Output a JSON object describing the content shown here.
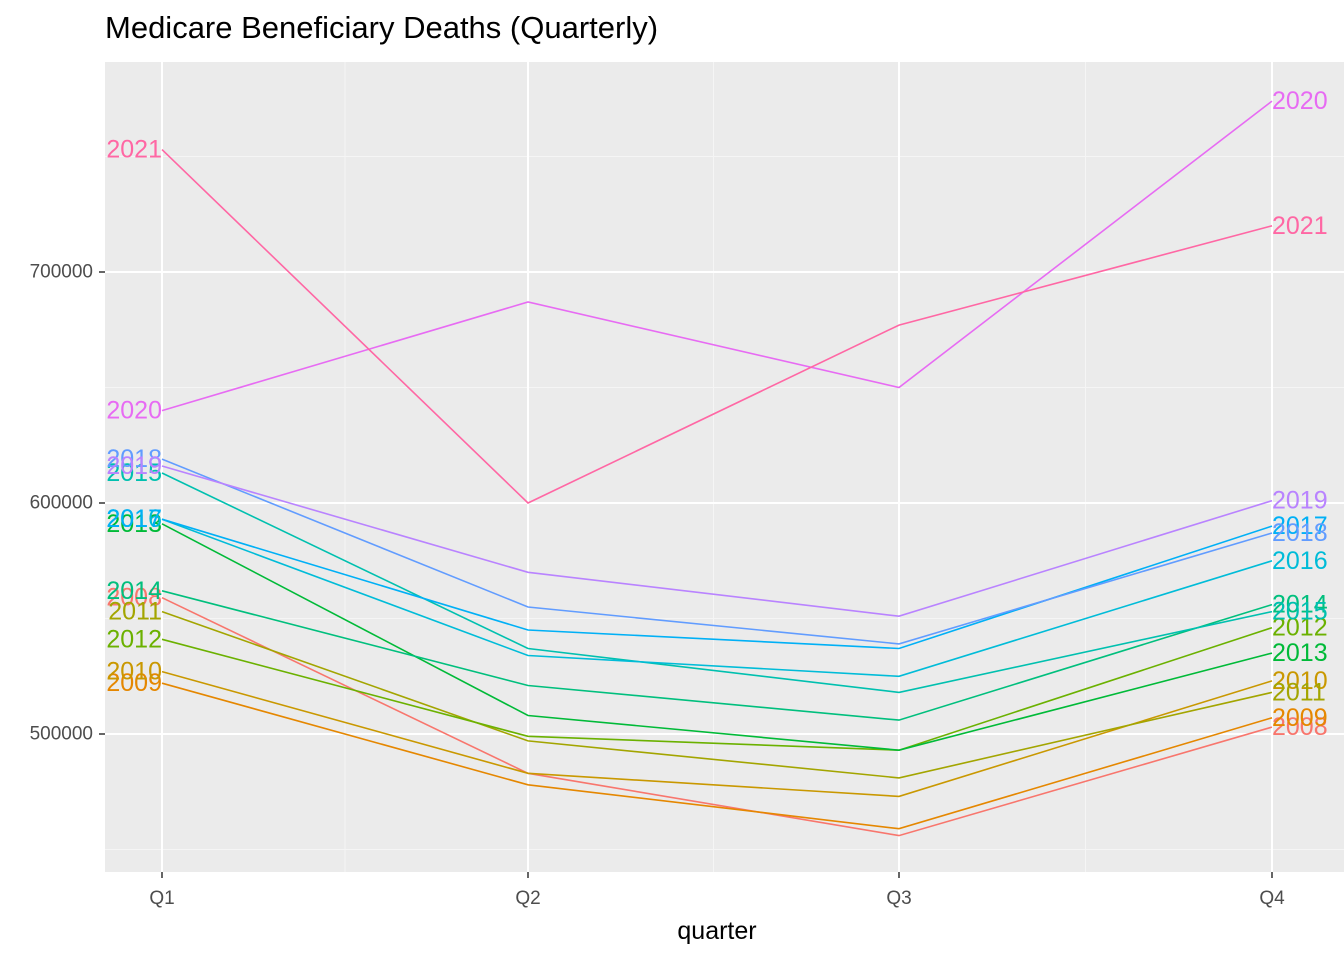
{
  "chart_data": {
    "type": "line",
    "title": "Medicare Beneficiary Deaths (Quarterly)",
    "xlabel": "quarter",
    "ylabel": "",
    "categories": [
      "Q1",
      "Q2",
      "Q3",
      "Q4"
    ],
    "ylim": [
      440000,
      780000
    ],
    "yticks": [
      500000,
      600000,
      700000
    ],
    "grid": true,
    "legend": "none (direct labels at Q1 and Q4)",
    "panel_background": "#ebebeb",
    "series": [
      {
        "name": "2008",
        "color": "#f8766d",
        "values": [
          559000,
          483000,
          456000,
          503000
        ]
      },
      {
        "name": "2009",
        "color": "#e58700",
        "values": [
          522000,
          478000,
          459000,
          507000
        ]
      },
      {
        "name": "2010",
        "color": "#c99800",
        "values": [
          527000,
          483000,
          473000,
          523000
        ]
      },
      {
        "name": "2011",
        "color": "#a3a500",
        "values": [
          553000,
          497000,
          481000,
          518000
        ]
      },
      {
        "name": "2012",
        "color": "#6bb100",
        "values": [
          541000,
          499000,
          493000,
          546000
        ]
      },
      {
        "name": "2013",
        "color": "#00ba38",
        "values": [
          591000,
          508000,
          493000,
          535000
        ]
      },
      {
        "name": "2014",
        "color": "#00bf7d",
        "values": [
          562000,
          521000,
          506000,
          556000
        ]
      },
      {
        "name": "2015",
        "color": "#00c0af",
        "values": [
          613000,
          537000,
          518000,
          553000
        ]
      },
      {
        "name": "2016",
        "color": "#00bcd8",
        "values": [
          593000,
          534000,
          525000,
          575000
        ]
      },
      {
        "name": "2017",
        "color": "#00b0f6",
        "values": [
          593000,
          545000,
          537000,
          590000
        ]
      },
      {
        "name": "2018",
        "color": "#619cff",
        "values": [
          619000,
          555000,
          539000,
          587000
        ]
      },
      {
        "name": "2019",
        "color": "#b983ff",
        "values": [
          616000,
          570000,
          551000,
          601000
        ]
      },
      {
        "name": "2020",
        "color": "#e76bf3",
        "values": [
          640000,
          687000,
          650000,
          774000
        ]
      },
      {
        "name": "2021",
        "color": "#ff67a4",
        "values": [
          753000,
          600000,
          677000,
          720000
        ]
      }
    ]
  }
}
